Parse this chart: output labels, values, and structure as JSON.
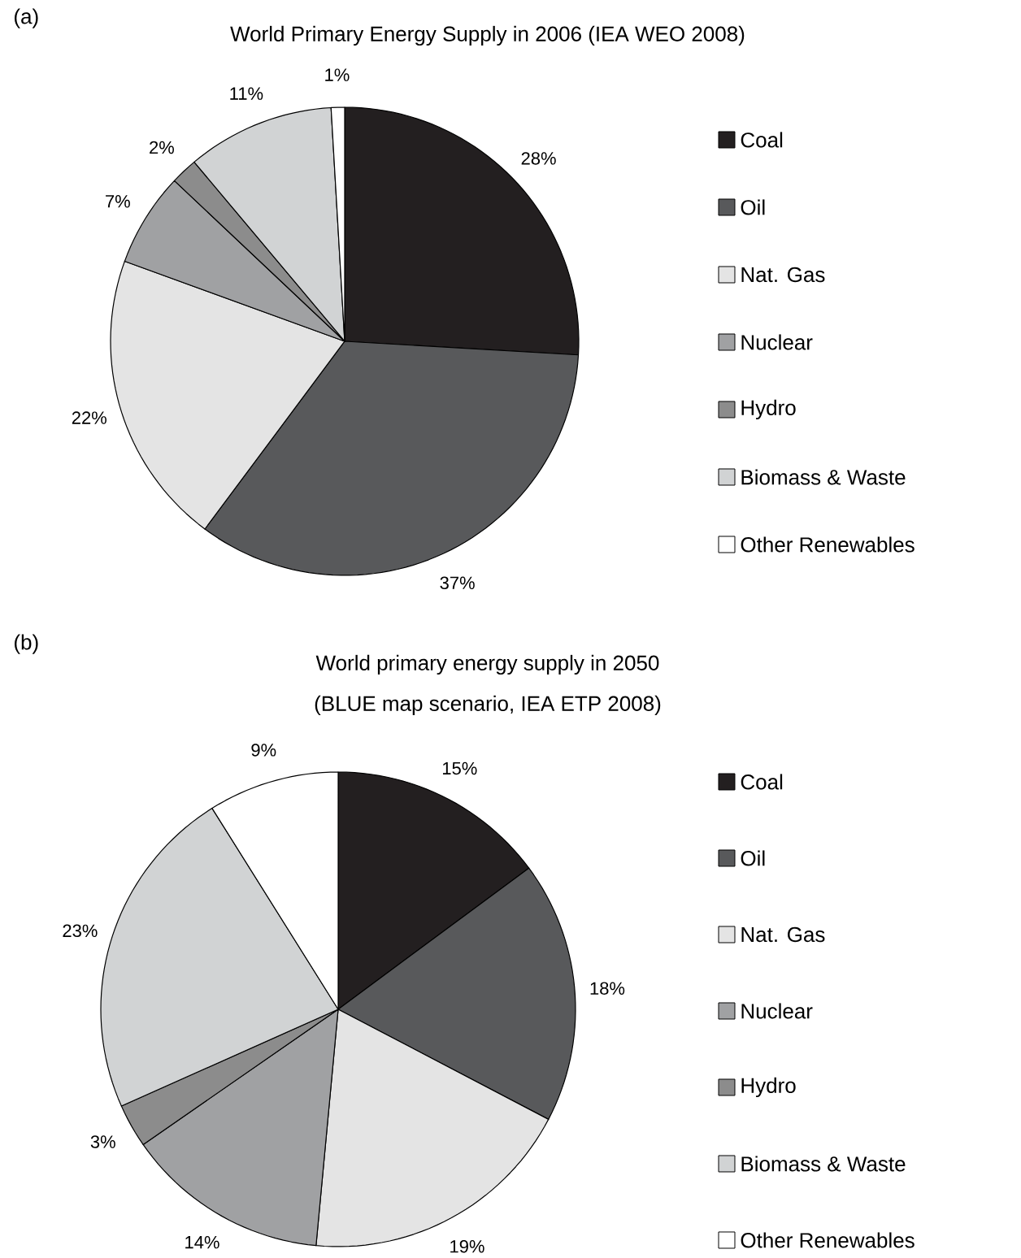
{
  "chart_data": [
    {
      "type": "pie",
      "title": "World Primary Energy Supply in 2006 (IEA WEO 2008)",
      "annotations": [
        "(a)"
      ],
      "categories": [
        "Coal",
        "Oil",
        "Nat. Gas",
        "Nuclear",
        "Hydro",
        "Biomass & Waste",
        "Other Renewables"
      ],
      "values": [
        28,
        37,
        22,
        7,
        2,
        11,
        1
      ],
      "value_labels": [
        "28%",
        "37%",
        "22%",
        "7%",
        "2%",
        "11%",
        "1%"
      ],
      "colors": [
        "#231f20",
        "#58595b",
        "#e4e4e4",
        "#a0a1a3",
        "#8c8c8c",
        "#d1d3d4",
        "#ffffff"
      ],
      "legend": "right"
    },
    {
      "type": "pie",
      "title": "World primary energy supply in 2050",
      "subtitle": "(BLUE map scenario, IEA ETP 2008)",
      "annotations": [
        "(b)"
      ],
      "categories": [
        "Coal",
        "Oil",
        "Nat. Gas",
        "Nuclear",
        "Hydro",
        "Biomass & Waste",
        "Other Renewables"
      ],
      "values": [
        15,
        18,
        19,
        14,
        3,
        23,
        9
      ],
      "value_labels": [
        "15%",
        "18%",
        "19%",
        "14%",
        "3%",
        "23%",
        "9%"
      ],
      "colors": [
        "#231f20",
        "#58595b",
        "#e4e4e4",
        "#a0a1a3",
        "#8c8c8c",
        "#d1d3d4",
        "#ffffff"
      ],
      "legend": "right"
    }
  ]
}
